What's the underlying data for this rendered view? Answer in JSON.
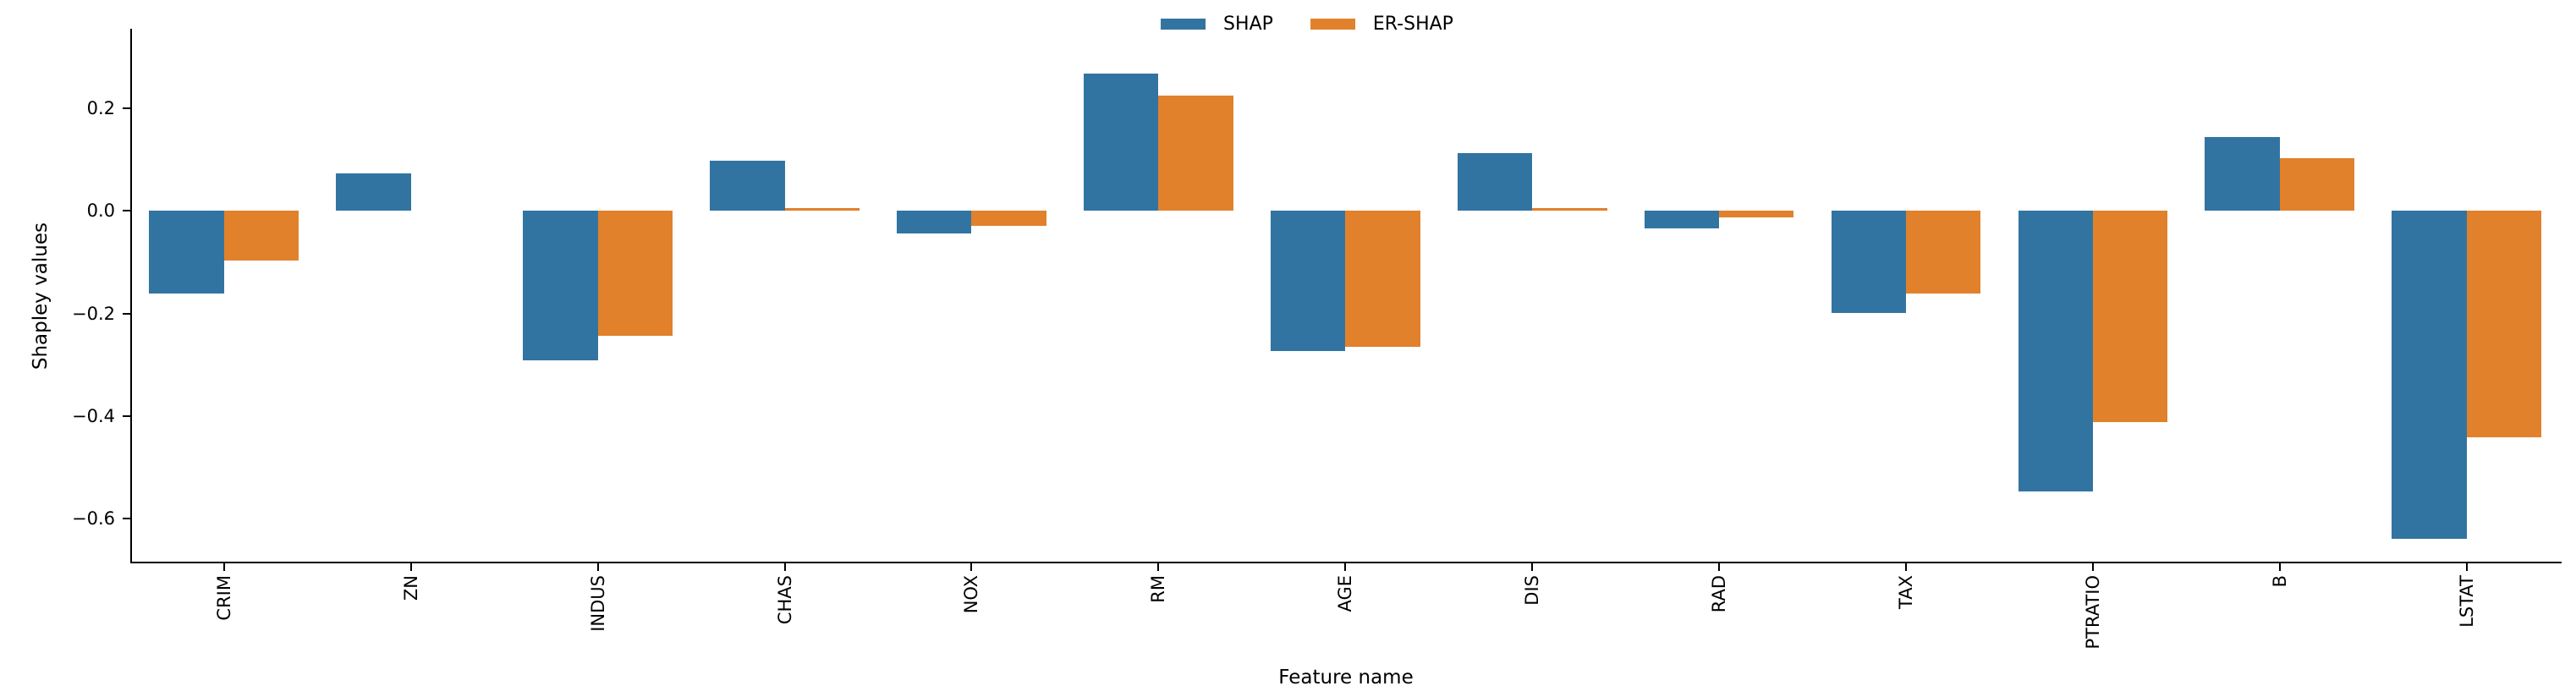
{
  "figure": {
    "background": "#ffffff"
  },
  "legend": {
    "items": [
      {
        "label": "SHAP",
        "color": "#3274a1"
      },
      {
        "label": "ER-SHAP",
        "color": "#e1812c"
      }
    ]
  },
  "chart_data": {
    "type": "bar",
    "title": "",
    "xlabel": "Feature name",
    "ylabel": "Shapley values",
    "categories": [
      "CRIM",
      "ZN",
      "INDUS",
      "CHAS",
      "NOX",
      "RM",
      "AGE",
      "DIS",
      "RAD",
      "TAX",
      "PTRATIO",
      "B",
      "LSTAT"
    ],
    "series": [
      {
        "name": "SHAP",
        "color": "#3274a1",
        "values": [
          -0.161,
          0.073,
          -0.291,
          0.098,
          -0.044,
          0.268,
          -0.273,
          0.113,
          -0.034,
          -0.199,
          -0.547,
          0.144,
          -0.639
        ]
      },
      {
        "name": "ER-SHAP",
        "color": "#e1812c",
        "values": [
          -0.097,
          0.0,
          -0.243,
          0.005,
          -0.029,
          0.225,
          -0.265,
          0.006,
          -0.013,
          -0.161,
          -0.412,
          0.103,
          -0.441
        ]
      }
    ],
    "ylim": [
      -0.686,
      0.354
    ],
    "yticks": {
      "values": [
        0.2,
        0.0,
        -0.2,
        -0.4,
        -0.6
      ],
      "labels": [
        "0.2",
        "0.0",
        "−0.2",
        "−0.4",
        "−0.6"
      ]
    },
    "grid": false,
    "legend_position": "upper center",
    "bar_orientation": "vertical"
  }
}
